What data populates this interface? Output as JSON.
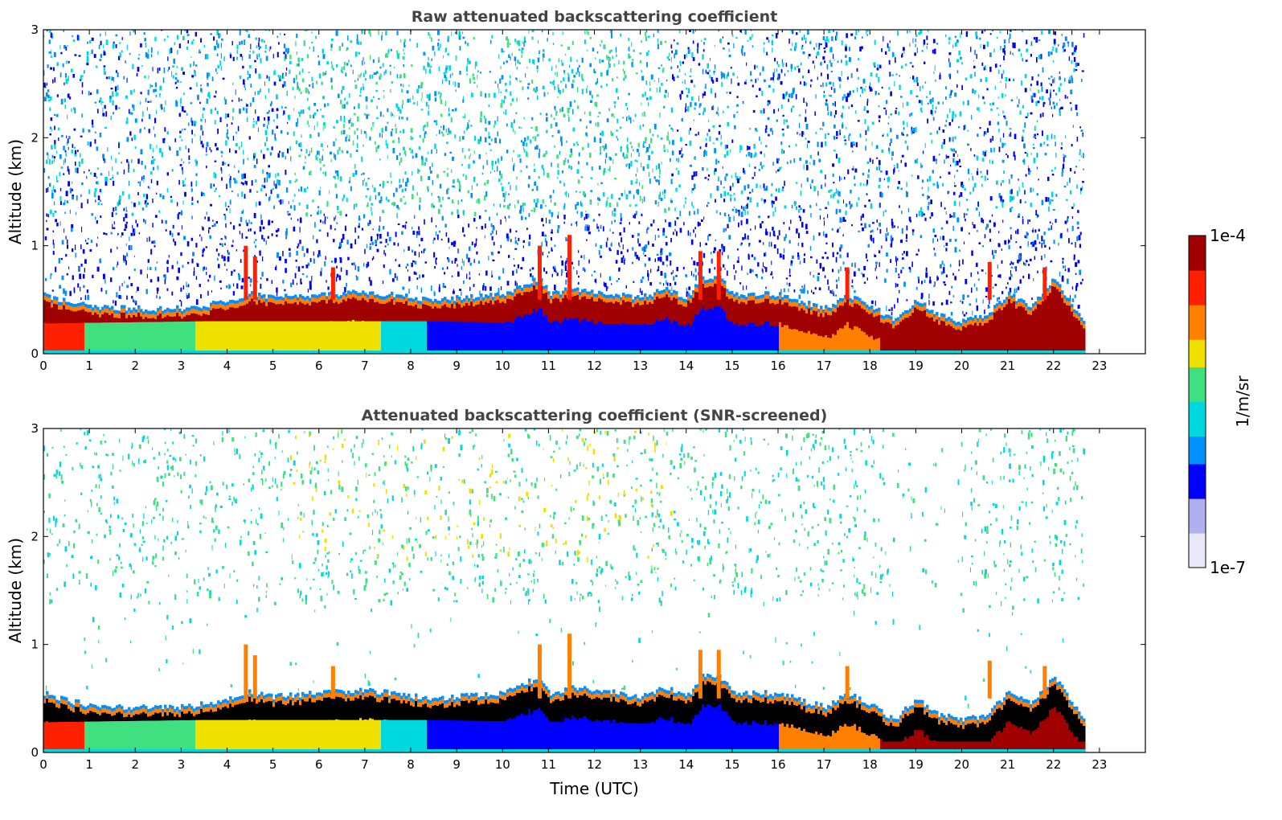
{
  "chart_data": [
    {
      "type": "heatmap",
      "title": "Raw attenuated backscattering coefficient",
      "xlabel": "",
      "ylabel": "Altitude (km)",
      "xlim": [
        0,
        24
      ],
      "ylim": [
        0,
        3
      ],
      "x_ticks": [
        0,
        1,
        2,
        3,
        4,
        5,
        6,
        7,
        8,
        9,
        10,
        11,
        12,
        13,
        14,
        15,
        16,
        17,
        18,
        19,
        20,
        21,
        22,
        23
      ],
      "y_ticks": [
        0,
        1,
        2,
        3
      ],
      "data_end_time": 22.65,
      "noise": "strong",
      "layer_top_km": {
        "x": [
          0,
          0.5,
          1,
          2,
          3,
          3.5,
          4,
          4.5,
          5,
          6,
          7,
          7.5,
          8,
          8.5,
          9,
          10,
          10.8,
          11,
          11.5,
          12,
          13,
          13.5,
          14,
          14.3,
          14.7,
          15,
          16,
          16.5,
          17,
          17.5,
          18,
          18.5,
          19,
          19.5,
          20,
          20.5,
          21,
          21.5,
          22,
          22.65
        ],
        "y": [
          0.55,
          0.48,
          0.44,
          0.42,
          0.42,
          0.45,
          0.5,
          0.56,
          0.52,
          0.55,
          0.58,
          0.55,
          0.52,
          0.5,
          0.52,
          0.55,
          0.7,
          0.55,
          0.6,
          0.58,
          0.52,
          0.6,
          0.52,
          0.7,
          0.72,
          0.55,
          0.55,
          0.48,
          0.42,
          0.55,
          0.45,
          0.3,
          0.5,
          0.35,
          0.3,
          0.35,
          0.55,
          0.45,
          0.7,
          0.3
        ]
      },
      "surface_layer_top_km": {
        "x": [
          0,
          3.5,
          7.3,
          8.3,
          16,
          17,
          18.2,
          22.65
        ],
        "y": [
          0.28,
          0.3,
          0.3,
          0.3,
          0.25,
          0.15,
          0.1,
          0.1
        ]
      },
      "clear_layer_span": [
        8.3,
        16.0
      ]
    },
    {
      "type": "heatmap",
      "title": "Attenuated backscattering coefficient (SNR-screened)",
      "xlabel": "Time (UTC)",
      "ylabel": "Altitude (km)",
      "xlim": [
        0,
        24
      ],
      "ylim": [
        0,
        3
      ],
      "x_ticks": [
        0,
        1,
        2,
        3,
        4,
        5,
        6,
        7,
        8,
        9,
        10,
        11,
        12,
        13,
        14,
        15,
        16,
        17,
        18,
        19,
        20,
        21,
        22,
        23
      ],
      "y_ticks": [
        0,
        1,
        2,
        3
      ],
      "data_end_time": 22.65,
      "noise": "screened",
      "layer_top_km": {
        "x": [
          0,
          0.5,
          1,
          2,
          3,
          3.5,
          4,
          4.5,
          5,
          6,
          7,
          7.5,
          8,
          8.5,
          9,
          10,
          10.8,
          11,
          11.5,
          12,
          13,
          13.5,
          14,
          14.3,
          14.7,
          15,
          16,
          16.5,
          17,
          17.5,
          18,
          18.5,
          19,
          19.5,
          20,
          20.5,
          21,
          21.5,
          22,
          22.65
        ],
        "y": [
          0.55,
          0.48,
          0.44,
          0.42,
          0.42,
          0.45,
          0.5,
          0.56,
          0.52,
          0.55,
          0.58,
          0.55,
          0.52,
          0.5,
          0.52,
          0.55,
          0.7,
          0.55,
          0.6,
          0.58,
          0.52,
          0.6,
          0.52,
          0.7,
          0.72,
          0.55,
          0.55,
          0.48,
          0.42,
          0.55,
          0.45,
          0.3,
          0.5,
          0.35,
          0.3,
          0.35,
          0.55,
          0.45,
          0.7,
          0.3
        ]
      },
      "surface_layer_top_km": {
        "x": [
          0,
          3.5,
          7.3,
          8.3,
          16,
          17,
          18.2,
          22.65
        ],
        "y": [
          0.28,
          0.3,
          0.3,
          0.3,
          0.25,
          0.15,
          0.1,
          0.1
        ]
      },
      "clear_layer_span": [
        8.3,
        16.0
      ]
    }
  ],
  "colorbar": {
    "label": "1/m/sr",
    "max_label": "1e-4",
    "min_label": "1e-7",
    "scale": "log",
    "range": [
      1e-07,
      0.0001
    ],
    "colors": [
      "#e8e8f8",
      "#b0b0f0",
      "#0000ff",
      "#0090ff",
      "#00d8e0",
      "#40e080",
      "#f0e000",
      "#ff8000",
      "#ff2000",
      "#a00000"
    ]
  }
}
